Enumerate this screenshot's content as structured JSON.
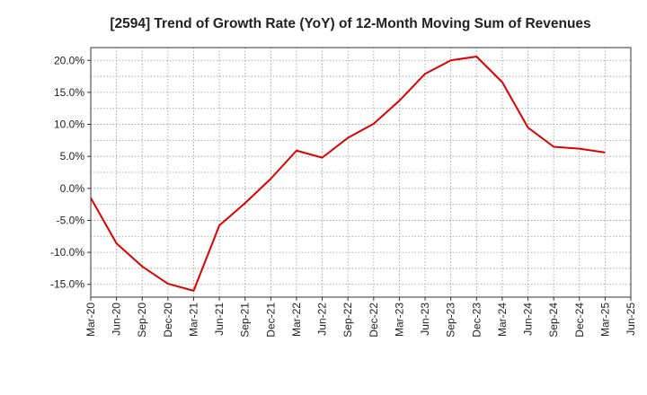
{
  "chart_data": {
    "type": "line",
    "title": "[2594]  Trend of Growth Rate (YoY) of 12-Month Moving Sum of Revenues",
    "xlabel": "",
    "ylabel": "",
    "x_tick_labels": [
      "Mar-20",
      "Jun-20",
      "Sep-20",
      "Dec-20",
      "Mar-21",
      "Jun-21",
      "Sep-21",
      "Dec-21",
      "Mar-22",
      "Jun-22",
      "Sep-22",
      "Dec-22",
      "Mar-23",
      "Jun-23",
      "Sep-23",
      "Dec-23",
      "Mar-24",
      "Jun-24",
      "Sep-24",
      "Dec-24",
      "Mar-25",
      "Jun-25"
    ],
    "y_ticks": [
      -15,
      -10,
      -5,
      0,
      5,
      10,
      15,
      20
    ],
    "y_tick_labels": [
      "-15.0%",
      "-10.0%",
      "-5.0%",
      "0.0%",
      "5.0%",
      "10.0%",
      "15.0%",
      "20.0%"
    ],
    "ylim": [
      -17,
      22
    ],
    "grid": true,
    "series": [
      {
        "color": "#dd0000",
        "x": [
          "Mar-20",
          "Jun-20",
          "Sep-20",
          "Dec-20",
          "Mar-21",
          "Jun-21",
          "Sep-21",
          "Dec-21",
          "Mar-22",
          "Jun-22",
          "Sep-22",
          "Dec-22",
          "Mar-23",
          "Jun-23",
          "Sep-23",
          "Dec-23",
          "Mar-24",
          "Jun-24",
          "Sep-24",
          "Dec-24",
          "Mar-25"
        ],
        "values": [
          -1.5,
          -8.6,
          -12.2,
          -14.9,
          -16.0,
          -5.8,
          -2.3,
          1.5,
          5.9,
          4.8,
          7.9,
          10.1,
          13.7,
          17.9,
          20.0,
          20.6,
          16.6,
          9.5,
          6.5,
          6.2,
          5.6
        ]
      }
    ]
  }
}
